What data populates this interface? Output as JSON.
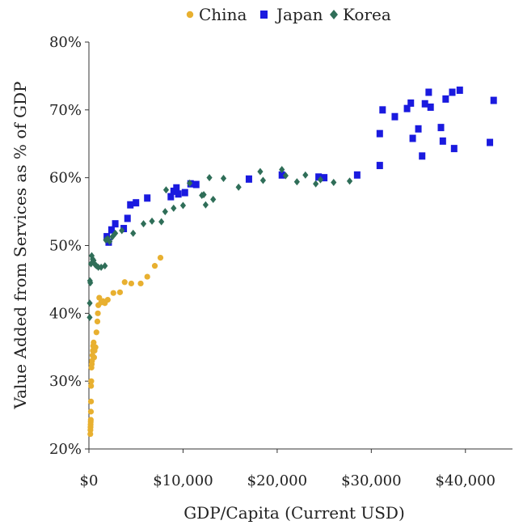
{
  "chart_data": {
    "type": "scatter",
    "xlabel": "GDP/Capita (Current USD)",
    "ylabel": "Value Added from Services as % of GDP",
    "xlim": [
      0,
      45000
    ],
    "ylim": [
      0.2,
      0.8
    ],
    "x_ticks": [
      0,
      10000,
      20000,
      30000,
      40000
    ],
    "x_tick_labels": [
      "$0",
      "$10,000",
      "$20,000",
      "$30,000",
      "$40,000"
    ],
    "y_ticks": [
      0.2,
      0.3,
      0.4,
      0.5,
      0.6,
      0.7,
      0.8
    ],
    "y_tick_labels": [
      "20%",
      "30%",
      "40%",
      "50%",
      "60%",
      "70%",
      "80%"
    ],
    "grid": false,
    "legend_position": "top",
    "series": [
      {
        "name": "China",
        "marker": "circle",
        "color": "#e8b030",
        "points": [
          [
            150,
            0.222
          ],
          [
            160,
            0.228
          ],
          [
            170,
            0.232
          ],
          [
            180,
            0.236
          ],
          [
            190,
            0.24
          ],
          [
            200,
            0.243
          ],
          [
            210,
            0.255
          ],
          [
            220,
            0.27
          ],
          [
            230,
            0.293
          ],
          [
            250,
            0.3
          ],
          [
            270,
            0.32
          ],
          [
            300,
            0.325
          ],
          [
            330,
            0.33
          ],
          [
            380,
            0.338
          ],
          [
            420,
            0.345
          ],
          [
            450,
            0.352
          ],
          [
            500,
            0.357
          ],
          [
            550,
            0.335
          ],
          [
            600,
            0.345
          ],
          [
            700,
            0.35
          ],
          [
            800,
            0.372
          ],
          [
            900,
            0.388
          ],
          [
            950,
            0.4
          ],
          [
            1000,
            0.412
          ],
          [
            1100,
            0.423
          ],
          [
            1300,
            0.416
          ],
          [
            1500,
            0.418
          ],
          [
            1700,
            0.415
          ],
          [
            2000,
            0.42
          ],
          [
            2600,
            0.43
          ],
          [
            3300,
            0.431
          ],
          [
            3800,
            0.446
          ],
          [
            4500,
            0.444
          ],
          [
            5500,
            0.444
          ],
          [
            6200,
            0.454
          ],
          [
            7000,
            0.47
          ],
          [
            7600,
            0.482
          ]
        ]
      },
      {
        "name": "Japan",
        "marker": "square",
        "color": "#1a1adf",
        "points": [
          [
            1900,
            0.513
          ],
          [
            2100,
            0.505
          ],
          [
            2400,
            0.523
          ],
          [
            2800,
            0.532
          ],
          [
            3700,
            0.525
          ],
          [
            4100,
            0.54
          ],
          [
            4400,
            0.56
          ],
          [
            5000,
            0.563
          ],
          [
            6200,
            0.57
          ],
          [
            8700,
            0.572
          ],
          [
            9000,
            0.58
          ],
          [
            9300,
            0.585
          ],
          [
            9500,
            0.576
          ],
          [
            10200,
            0.578
          ],
          [
            10800,
            0.591
          ],
          [
            11400,
            0.59
          ],
          [
            17000,
            0.598
          ],
          [
            20500,
            0.604
          ],
          [
            24400,
            0.601
          ],
          [
            25000,
            0.6
          ],
          [
            28500,
            0.604
          ],
          [
            30900,
            0.618
          ],
          [
            30900,
            0.665
          ],
          [
            31200,
            0.7
          ],
          [
            32500,
            0.69
          ],
          [
            33800,
            0.702
          ],
          [
            34200,
            0.71
          ],
          [
            34400,
            0.658
          ],
          [
            35000,
            0.672
          ],
          [
            35400,
            0.632
          ],
          [
            35700,
            0.709
          ],
          [
            36100,
            0.726
          ],
          [
            36300,
            0.704
          ],
          [
            37400,
            0.674
          ],
          [
            37600,
            0.654
          ],
          [
            37900,
            0.716
          ],
          [
            38600,
            0.726
          ],
          [
            38800,
            0.643
          ],
          [
            39400,
            0.729
          ],
          [
            42600,
            0.652
          ],
          [
            43000,
            0.714
          ]
        ]
      },
      {
        "name": "Korea",
        "marker": "diamond",
        "color": "#2f6e58",
        "points": [
          [
            80,
            0.394
          ],
          [
            90,
            0.415
          ],
          [
            110,
            0.448
          ],
          [
            150,
            0.445
          ],
          [
            220,
            0.473
          ],
          [
            300,
            0.485
          ],
          [
            400,
            0.48
          ],
          [
            500,
            0.478
          ],
          [
            650,
            0.472
          ],
          [
            800,
            0.47
          ],
          [
            1000,
            0.468
          ],
          [
            1300,
            0.468
          ],
          [
            1700,
            0.47
          ],
          [
            1800,
            0.508
          ],
          [
            2000,
            0.51
          ],
          [
            2200,
            0.506
          ],
          [
            2500,
            0.513
          ],
          [
            2800,
            0.518
          ],
          [
            3500,
            0.522
          ],
          [
            4700,
            0.518
          ],
          [
            5800,
            0.532
          ],
          [
            6700,
            0.536
          ],
          [
            7700,
            0.535
          ],
          [
            8100,
            0.55
          ],
          [
            8200,
            0.582
          ],
          [
            9000,
            0.555
          ],
          [
            10000,
            0.559
          ],
          [
            10700,
            0.592
          ],
          [
            12000,
            0.574
          ],
          [
            12200,
            0.575
          ],
          [
            12400,
            0.56
          ],
          [
            12800,
            0.6
          ],
          [
            13200,
            0.568
          ],
          [
            14300,
            0.599
          ],
          [
            15900,
            0.586
          ],
          [
            18200,
            0.609
          ],
          [
            18500,
            0.596
          ],
          [
            20500,
            0.612
          ],
          [
            20900,
            0.603
          ],
          [
            22100,
            0.594
          ],
          [
            23000,
            0.604
          ],
          [
            24100,
            0.591
          ],
          [
            24600,
            0.597
          ],
          [
            26000,
            0.593
          ],
          [
            27700,
            0.595
          ]
        ]
      }
    ]
  }
}
